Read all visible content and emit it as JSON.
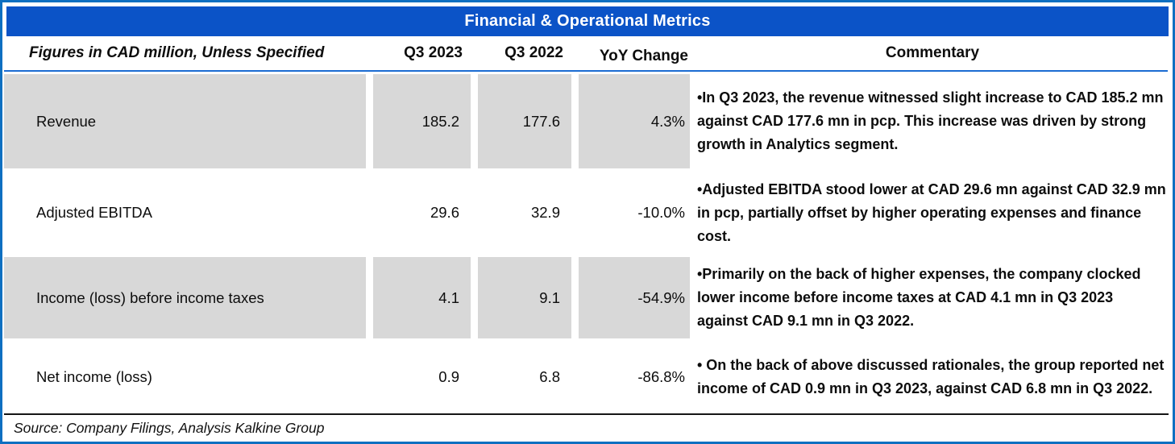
{
  "title": "Financial & Operational Metrics",
  "table": {
    "headers": {
      "metric": "Figures in CAD million, Unless Specified",
      "q3_2023": "Q3 2023",
      "q3_2022": "Q3 2022",
      "yoy": "YoY Change",
      "commentary": "Commentary"
    },
    "rows": [
      {
        "label": "Revenue",
        "q3_2023": "185.2",
        "q3_2022": "177.6",
        "yoy": "4.3%",
        "commentary": "•In Q3 2023, the revenue witnessed slight increase to CAD 185.2 mn against CAD 177.6 mn in pcp. This increase was driven by strong growth in Analytics segment."
      },
      {
        "label": "Adjusted EBITDA",
        "q3_2023": "29.6",
        "q3_2022": "32.9",
        "yoy": "-10.0%",
        "commentary": "•Adjusted EBITDA stood lower at CAD 29.6 mn against CAD 32.9 mn in pcp, partially offset by higher operating expenses and finance cost."
      },
      {
        "label": "Income (loss) before income taxes",
        "q3_2023": "4.1",
        "q3_2022": "9.1",
        "yoy": "-54.9%",
        "commentary": "•Primarily on the back of higher expenses, the company clocked lower income before income taxes at CAD 4.1 mn in Q3 2023 against CAD 9.1 mn in Q3 2022."
      },
      {
        "label": "Net income (loss)",
        "q3_2023": "0.9",
        "q3_2022": "6.8",
        "yoy": "-86.8%",
        "commentary": "• On the back of above discussed rationales, the group reported net income of CAD 0.9 mn in Q3 2023, against CAD 6.8 mn in Q3 2022."
      }
    ],
    "source": "Source: Company Filings, Analysis Kalkine Group"
  },
  "colors": {
    "title_bar": "#0b53c7",
    "outer_border": "#0e6fc1",
    "header_rule": "#1b6cd2",
    "row_shade": "#d8d8d8",
    "text": "#0d0d0d"
  }
}
